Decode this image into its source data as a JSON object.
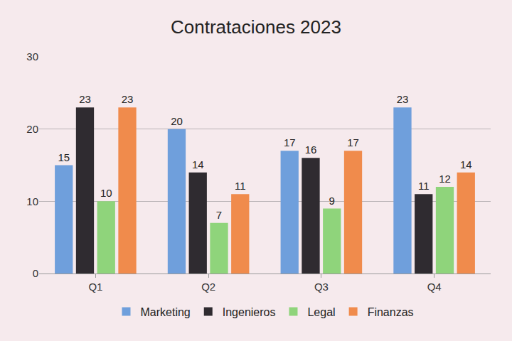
{
  "chart_data": {
    "type": "bar",
    "title": "Contrataciones 2023",
    "categories": [
      "Q1",
      "Q2",
      "Q3",
      "Q4"
    ],
    "series": [
      {
        "name": "Marketing",
        "color": "#6f9fdc",
        "values": [
          15,
          20,
          17,
          23
        ]
      },
      {
        "name": "Ingenieros",
        "color": "#2f2b30",
        "values": [
          23,
          14,
          16,
          11
        ]
      },
      {
        "name": "Legal",
        "color": "#8fd47b",
        "values": [
          10,
          7,
          9,
          12
        ]
      },
      {
        "name": "Finanzas",
        "color": "#f08b4c",
        "values": [
          23,
          11,
          17,
          14
        ]
      }
    ],
    "ylim": [
      0,
      30
    ],
    "yticks": [
      0,
      10,
      20,
      30
    ],
    "grid": true,
    "legend": "bottom",
    "data_labels": true
  }
}
